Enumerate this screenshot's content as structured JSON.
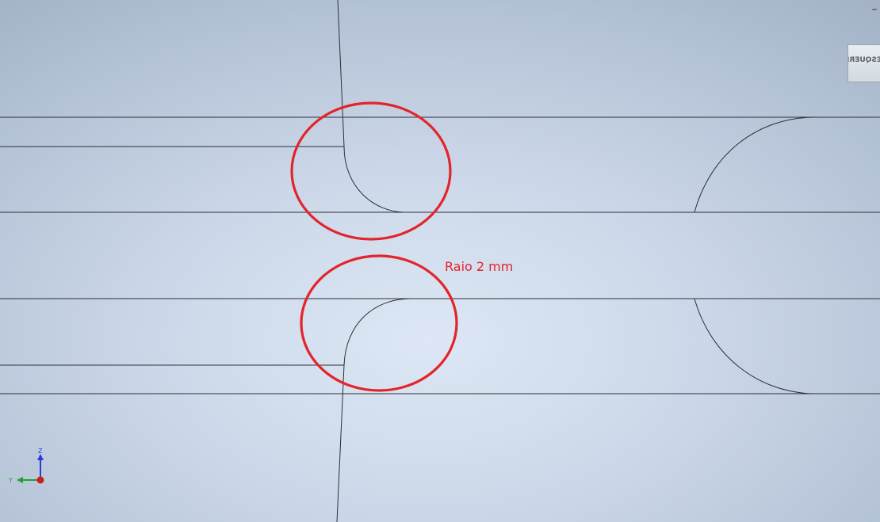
{
  "window": {
    "minimize_glyph": "–"
  },
  "viewcube": {
    "face_label": "ESQUERDA"
  },
  "annotation": {
    "text": "Raio 2 mm",
    "color": "#e3242b"
  },
  "triad": {
    "z_label": "Z",
    "y_label": "Y",
    "z_color": "#2a3ad6",
    "y_color": "#1fa32b",
    "x_color": "#c81e1e"
  },
  "colors": {
    "background_center": "#dde7f5",
    "background_edge": "#a3b1c6",
    "sketch_line": "#2a2f38",
    "highlight_marker": "#e3242b"
  }
}
